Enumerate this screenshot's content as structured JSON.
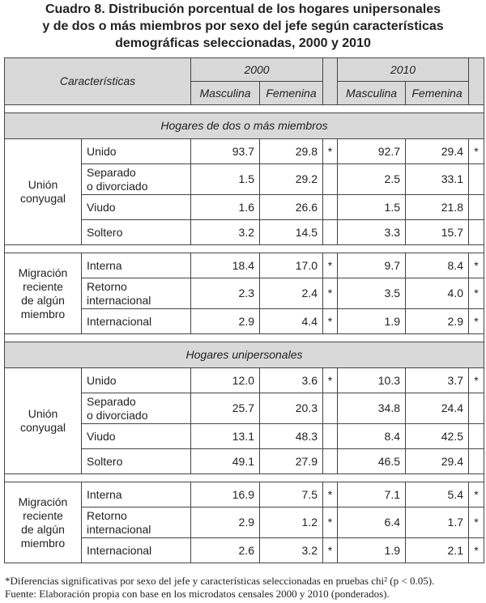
{
  "title": [
    "Cuadro 8. Distribución porcentual de los hogares unipersonales",
    "y de dos o más miembros por sexo del jefe según características",
    "demográficas seleccionadas, 2000 y 2010"
  ],
  "header": {
    "characteristics": "Características",
    "years": [
      "2000",
      "2010"
    ],
    "sexes": [
      "Masculina",
      "Femenina"
    ]
  },
  "sections": [
    {
      "label": "Hogares de dos o más miembros",
      "groups": [
        {
          "label": [
            "Unión",
            "conyugal"
          ],
          "rows": [
            {
              "label": [
                "Unido"
              ],
              "v": [
                "93.7",
                "29.8",
                "*",
                "92.7",
                "29.4",
                "*"
              ]
            },
            {
              "label": [
                "Separado",
                "o divorciado"
              ],
              "v": [
                "1.5",
                "29.2",
                "",
                "2.5",
                "33.1",
                ""
              ]
            },
            {
              "label": [
                "Viudo"
              ],
              "v": [
                "1.6",
                "26.6",
                "",
                "1.5",
                "21.8",
                ""
              ]
            },
            {
              "label": [
                "Soltero"
              ],
              "v": [
                "3.2",
                "14.5",
                "",
                "3.3",
                "15.7",
                ""
              ]
            }
          ]
        },
        {
          "label": [
            "Migración",
            "reciente",
            "de algún",
            "miembro"
          ],
          "rows": [
            {
              "label": [
                "Interna"
              ],
              "v": [
                "18.4",
                "17.0",
                "*",
                "9.7",
                "8.4",
                "*"
              ]
            },
            {
              "label": [
                "Retorno",
                "internacional"
              ],
              "v": [
                "2.3",
                "2.4",
                "*",
                "3.5",
                "4.0",
                "*"
              ]
            },
            {
              "label": [
                "Internacional"
              ],
              "v": [
                "2.9",
                "4.4",
                "*",
                "1.9",
                "2.9",
                "*"
              ]
            }
          ]
        }
      ]
    },
    {
      "label": "Hogares unipersonales",
      "groups": [
        {
          "label": [
            "Unión",
            "conyugal"
          ],
          "rows": [
            {
              "label": [
                "Unido"
              ],
              "v": [
                "12.0",
                "3.6",
                "*",
                "10.3",
                "3.7",
                "*"
              ]
            },
            {
              "label": [
                "Separado",
                "o divorciado"
              ],
              "v": [
                "25.7",
                "20.3",
                "",
                "34.8",
                "24.4",
                ""
              ]
            },
            {
              "label": [
                "Viudo"
              ],
              "v": [
                "13.1",
                "48.3",
                "",
                "8.4",
                "42.5",
                ""
              ]
            },
            {
              "label": [
                "Soltero"
              ],
              "v": [
                "49.1",
                "27.9",
                "",
                "46.5",
                "29.4",
                ""
              ]
            }
          ]
        },
        {
          "label": [
            "Migración",
            "reciente",
            "de algún",
            "miembro"
          ],
          "rows": [
            {
              "label": [
                "Interna"
              ],
              "v": [
                "16.9",
                "7.5",
                "*",
                "7.1",
                "5.4",
                "*"
              ]
            },
            {
              "label": [
                "Retorno",
                "internacional"
              ],
              "v": [
                "2.9",
                "1.2",
                "*",
                "6.4",
                "1.7",
                "*"
              ]
            },
            {
              "label": [
                "Internacional"
              ],
              "v": [
                "2.6",
                "3.2",
                "*",
                "1.9",
                "2.1",
                "*"
              ]
            }
          ]
        }
      ]
    }
  ],
  "footnotes": [
    "*Diferencias significativas por sexo del jefe y características seleccionadas en pruebas chi² (p < 0.05).",
    "Fuente: Elaboración propia con base en los microdatos censales 2000 y 2010 (ponderados)."
  ]
}
